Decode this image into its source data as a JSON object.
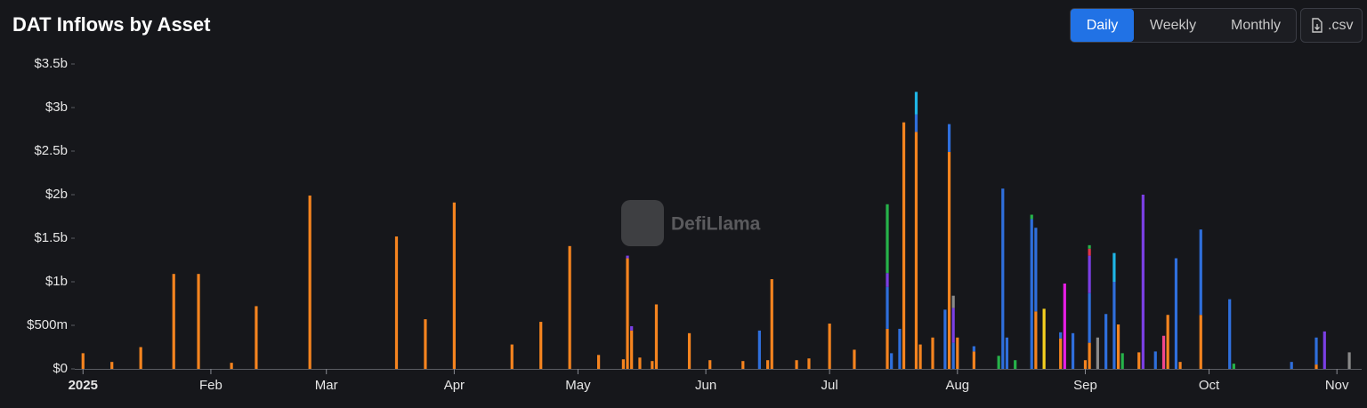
{
  "toolbar": {
    "intervals": [
      "Daily",
      "Weekly",
      "Monthly"
    ],
    "selected": 0,
    "download": ".csv"
  },
  "watermark": "DefiLlama",
  "chart_data": {
    "type": "bar",
    "stacked": true,
    "title": "DAT Inflows by Asset",
    "x": [
      0,
      7,
      14,
      22,
      28,
      36,
      42,
      55,
      76,
      83,
      90,
      104,
      111,
      118,
      125,
      131,
      132,
      133,
      135,
      138,
      139,
      147,
      152,
      160,
      164,
      166,
      167,
      173,
      176,
      181,
      187,
      195,
      196,
      198,
      199,
      202,
      203,
      206,
      209,
      210,
      211,
      212,
      216,
      222,
      223,
      224,
      226,
      230,
      231,
      233,
      237,
      238,
      240,
      243,
      244,
      246,
      248,
      250,
      251,
      252,
      256,
      257,
      260,
      262,
      263,
      265,
      266,
      271,
      278,
      279,
      293,
      299,
      301,
      307
    ],
    "xlim": [
      -2,
      310
    ],
    "xticks": [
      {
        "value": 0,
        "label": "2025"
      },
      {
        "value": 31,
        "label": "Feb"
      },
      {
        "value": 59,
        "label": "Mar"
      },
      {
        "value": 90,
        "label": "Apr"
      },
      {
        "value": 120,
        "label": "May"
      },
      {
        "value": 151,
        "label": "Jun"
      },
      {
        "value": 181,
        "label": "Jul"
      },
      {
        "value": 212,
        "label": "Aug"
      },
      {
        "value": 243,
        "label": "Sep"
      },
      {
        "value": 273,
        "label": "Oct"
      },
      {
        "value": 304,
        "label": "Nov"
      }
    ],
    "ylim": [
      0,
      3.5
    ],
    "yticks": [
      {
        "value": 0,
        "label": "$0"
      },
      {
        "value": 0.5,
        "label": "$500m"
      },
      {
        "value": 1,
        "label": "$1b"
      },
      {
        "value": 1.5,
        "label": "$1.5b"
      },
      {
        "value": 2,
        "label": "$2b"
      },
      {
        "value": 2.5,
        "label": "$2.5b"
      },
      {
        "value": 3,
        "label": "$3b"
      },
      {
        "value": 3.5,
        "label": "$3.5b"
      }
    ],
    "grid": false,
    "series": [
      {
        "color": "#f5841f",
        "values": [
          0.18,
          0.08,
          0.25,
          1.09,
          1.09,
          0.07,
          0.72,
          1.99,
          1.52,
          0.57,
          1.91,
          0.28,
          0.54,
          1.41,
          0.16,
          0.11,
          1.27,
          0.44,
          0.13,
          0.09,
          0.74,
          0.41,
          0.1,
          0.09,
          0,
          0.1,
          1.03,
          0.1,
          0.12,
          0.52,
          0.22,
          0.46,
          0,
          0,
          2.83,
          2.72,
          0.28,
          0.36,
          0,
          2.49,
          0,
          0.36,
          0.2,
          0,
          0,
          0,
          0,
          0,
          0.66,
          0,
          0.35,
          0,
          0,
          0.1,
          0.3,
          0,
          0,
          0,
          0.51,
          0,
          0.19,
          0,
          0,
          0,
          0.62,
          0,
          0.08,
          0.62,
          0,
          0,
          0,
          0.05,
          0,
          0
        ]
      },
      {
        "color": "#2f6fdc",
        "values": [
          0,
          0,
          0,
          0,
          0,
          0,
          0,
          0,
          0,
          0,
          0,
          0,
          0,
          0,
          0,
          0,
          0,
          0,
          0,
          0,
          0,
          0,
          0,
          0,
          0.44,
          0,
          0,
          0,
          0,
          0,
          0,
          0.48,
          0.18,
          0.46,
          0,
          0.2,
          0,
          0,
          0.68,
          0.32,
          0.3,
          0,
          0.06,
          0,
          2.07,
          0.36,
          0,
          1.72,
          0.96,
          0,
          0.07,
          0,
          0.41,
          0,
          0.57,
          0,
          0.63,
          1.0,
          0,
          0,
          0,
          0,
          0.2,
          0,
          0,
          1.27,
          0,
          0.98,
          0.8,
          0,
          0.08,
          0.31,
          0,
          0
        ]
      },
      {
        "color": "#7b3fe4",
        "values": [
          0,
          0,
          0,
          0,
          0,
          0,
          0,
          0,
          0,
          0,
          0,
          0,
          0,
          0,
          0,
          0,
          0.03,
          0.05,
          0,
          0,
          0,
          0,
          0,
          0,
          0,
          0,
          0,
          0,
          0,
          0,
          0,
          0.16,
          0,
          0,
          0,
          0,
          0,
          0,
          0,
          0,
          0.4,
          0,
          0,
          0,
          0,
          0,
          0,
          0,
          0,
          0,
          0,
          0,
          0,
          0,
          0.43,
          0,
          0,
          0,
          0,
          0,
          0,
          2.0,
          0,
          0,
          0,
          0,
          0,
          0,
          0,
          0,
          0,
          0,
          0.43,
          0
        ]
      },
      {
        "color": "#e2344a",
        "values": [
          0,
          0,
          0,
          0,
          0,
          0,
          0,
          0,
          0,
          0,
          0,
          0,
          0,
          0,
          0,
          0,
          0,
          0,
          0,
          0,
          0,
          0,
          0,
          0,
          0,
          0,
          0,
          0,
          0,
          0,
          0,
          0,
          0,
          0,
          0,
          0,
          0,
          0,
          0,
          0,
          0,
          0,
          0,
          0,
          0,
          0,
          0,
          0,
          0,
          0,
          0,
          0,
          0,
          0,
          0.08,
          0,
          0,
          0,
          0,
          0,
          0,
          0,
          0,
          0,
          0,
          0,
          0,
          0,
          0,
          0,
          0,
          0,
          0,
          0
        ]
      },
      {
        "color": "#26b34a",
        "values": [
          0,
          0,
          0,
          0,
          0,
          0,
          0,
          0,
          0,
          0,
          0,
          0,
          0,
          0,
          0,
          0,
          0,
          0,
          0,
          0,
          0,
          0,
          0,
          0,
          0,
          0,
          0,
          0,
          0,
          0,
          0,
          0.79,
          0,
          0,
          0,
          0,
          0,
          0,
          0,
          0,
          0,
          0,
          0,
          0.15,
          0,
          0,
          0.1,
          0.05,
          0,
          0,
          0,
          0,
          0,
          0,
          0.04,
          0,
          0,
          0,
          0,
          0.18,
          0,
          0,
          0,
          0,
          0,
          0,
          0,
          0,
          0,
          0.06,
          0,
          0,
          0,
          0
        ]
      },
      {
        "color": "#1fb6e6",
        "values": [
          0,
          0,
          0,
          0,
          0,
          0,
          0,
          0,
          0,
          0,
          0,
          0,
          0,
          0,
          0,
          0,
          0,
          0,
          0,
          0,
          0,
          0,
          0,
          0,
          0,
          0,
          0,
          0,
          0,
          0,
          0,
          0,
          0,
          0,
          0,
          0.26,
          0,
          0,
          0,
          0,
          0,
          0,
          0,
          0,
          0,
          0,
          0,
          0,
          0,
          0,
          0,
          0,
          0,
          0,
          0,
          0,
          0,
          0.33,
          0,
          0,
          0,
          0,
          0,
          0,
          0,
          0,
          0,
          0,
          0,
          0,
          0,
          0,
          0,
          0
        ]
      },
      {
        "color": "#8a8a8a",
        "values": [
          0,
          0,
          0,
          0,
          0,
          0,
          0,
          0,
          0,
          0,
          0,
          0,
          0,
          0,
          0,
          0,
          0,
          0,
          0,
          0,
          0,
          0,
          0,
          0,
          0,
          0,
          0,
          0,
          0,
          0,
          0,
          0,
          0,
          0,
          0,
          0,
          0,
          0,
          0,
          0,
          0.14,
          0,
          0,
          0,
          0,
          0,
          0,
          0,
          0,
          0,
          0,
          0,
          0,
          0,
          0,
          0.36,
          0,
          0,
          0,
          0,
          0,
          0,
          0,
          0,
          0,
          0,
          0,
          0,
          0,
          0,
          0,
          0,
          0,
          0.19
        ]
      },
      {
        "color": "#f5d020",
        "values": [
          0,
          0,
          0,
          0,
          0,
          0,
          0,
          0,
          0,
          0,
          0,
          0,
          0,
          0,
          0,
          0,
          0,
          0,
          0,
          0,
          0,
          0,
          0,
          0,
          0,
          0,
          0,
          0,
          0,
          0,
          0,
          0,
          0,
          0,
          0,
          0,
          0,
          0,
          0,
          0,
          0,
          0,
          0,
          0,
          0,
          0,
          0,
          0,
          0,
          0.69,
          0,
          0,
          0,
          0,
          0,
          0,
          0,
          0,
          0,
          0,
          0,
          0,
          0,
          0,
          0,
          0,
          0,
          0,
          0,
          0,
          0,
          0,
          0,
          0
        ]
      },
      {
        "color": "#e91ee6",
        "values": [
          0,
          0,
          0,
          0,
          0,
          0,
          0,
          0,
          0,
          0,
          0,
          0,
          0,
          0,
          0,
          0,
          0,
          0,
          0,
          0,
          0,
          0,
          0,
          0,
          0,
          0,
          0,
          0,
          0,
          0,
          0,
          0,
          0,
          0,
          0,
          0,
          0,
          0,
          0,
          0,
          0,
          0,
          0,
          0,
          0,
          0,
          0,
          0,
          0,
          0,
          0,
          0.98,
          0,
          0,
          0,
          0,
          0,
          0,
          0,
          0,
          0,
          0,
          0,
          0,
          0,
          0,
          0,
          0,
          0,
          0,
          0,
          0,
          0,
          0
        ]
      },
      {
        "color": "#f0468c",
        "values": [
          0,
          0,
          0,
          0,
          0,
          0,
          0,
          0,
          0,
          0,
          0,
          0,
          0,
          0,
          0,
          0,
          0,
          0,
          0,
          0,
          0,
          0,
          0,
          0,
          0,
          0,
          0,
          0,
          0,
          0,
          0,
          0,
          0,
          0,
          0,
          0,
          0,
          0,
          0,
          0,
          0,
          0,
          0,
          0,
          0,
          0,
          0,
          0,
          0,
          0,
          0,
          0,
          0,
          0,
          0,
          0,
          0,
          0,
          0,
          0,
          0,
          0,
          0,
          0.38,
          0,
          0,
          0,
          0,
          0,
          0,
          0,
          0,
          0,
          0
        ]
      }
    ]
  }
}
